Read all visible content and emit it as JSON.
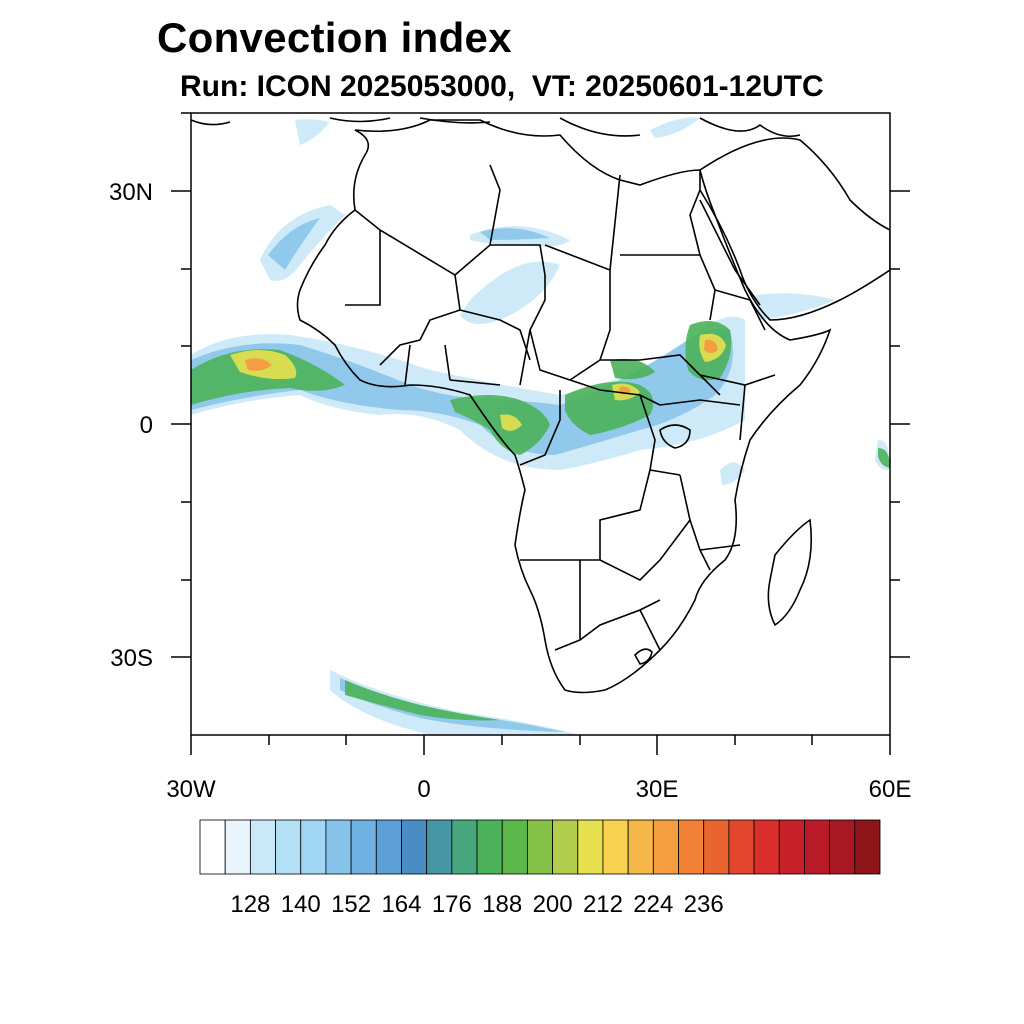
{
  "title": "Convection index",
  "subtitle": "Run: ICON 2025053000,  VT: 20250601-12UTC",
  "map": {
    "lon_range": [
      -30,
      60
    ],
    "lat_range": [
      -40,
      40
    ],
    "lat_ticks": [
      {
        "value": 30,
        "label": "30N"
      },
      {
        "value": 0,
        "label": "0"
      },
      {
        "value": -30,
        "label": "30S"
      }
    ],
    "lon_ticks": [
      {
        "value": -30,
        "label": "30W"
      },
      {
        "value": 0,
        "label": "0"
      },
      {
        "value": 30,
        "label": "30E"
      },
      {
        "value": 60,
        "label": "60E"
      }
    ]
  },
  "colorbar": {
    "labels": [
      "128",
      "140",
      "152",
      "164",
      "176",
      "188",
      "200",
      "212",
      "224",
      "236"
    ],
    "colors": [
      "#ffffff",
      "#e8f5fc",
      "#c9e8f8",
      "#b4e0f7",
      "#9fd6f3",
      "#86c3ea",
      "#6fb2e2",
      "#5b9fd6",
      "#4a8cc4",
      "#4597a6",
      "#49a780",
      "#4cb25a",
      "#5cb84a",
      "#86c24a",
      "#b2cd4b",
      "#e6e04f",
      "#f8d24e",
      "#f7b84a",
      "#f59e41",
      "#f28136",
      "#ea6430",
      "#e2472b",
      "#d92e2b",
      "#c82029",
      "#b81b27",
      "#a81822",
      "#8e1519"
    ]
  }
}
